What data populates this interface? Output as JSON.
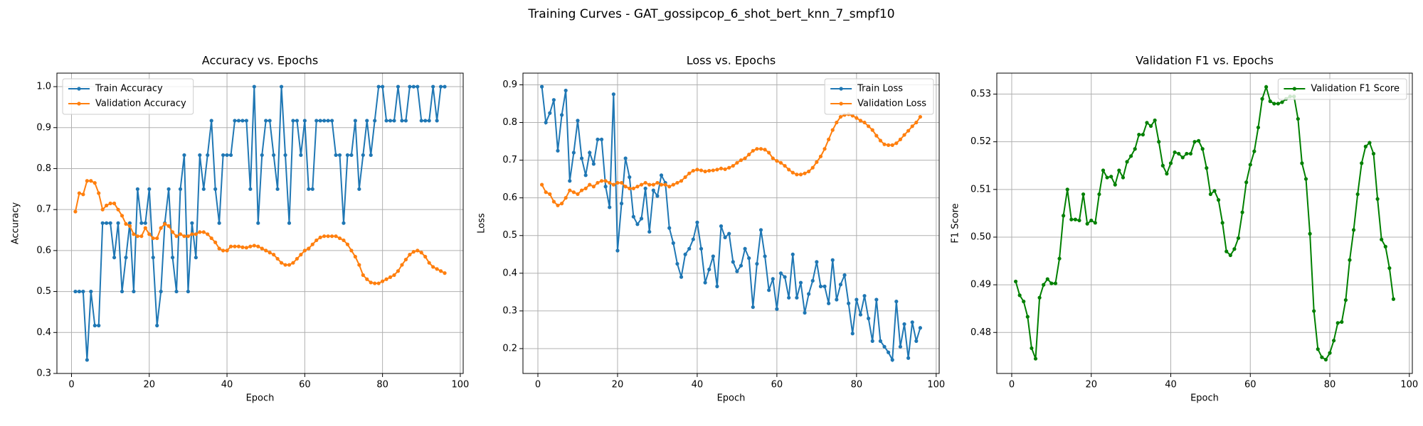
{
  "title": "Training Curves - GAT_gossipcop_6_shot_bert_knn_7_smpf10",
  "chart_data": [
    {
      "type": "line",
      "title": "Accuracy vs. Epochs",
      "x_label": "Epoch",
      "y_label": "Accuracy",
      "x": [
        1,
        2,
        3,
        4,
        5,
        6,
        7,
        8,
        9,
        10,
        11,
        12,
        13,
        14,
        15,
        16,
        17,
        18,
        19,
        20,
        21,
        22,
        23,
        24,
        25,
        26,
        27,
        28,
        29,
        30,
        31,
        32,
        33,
        34,
        35,
        36,
        37,
        38,
        39,
        40,
        41,
        42,
        43,
        44,
        45,
        46,
        47,
        48,
        49,
        50,
        51,
        52,
        53,
        54,
        55,
        56,
        57,
        58,
        59,
        60,
        61,
        62,
        63,
        64,
        65,
        66,
        67,
        68,
        69,
        70,
        71,
        72,
        73,
        74,
        75,
        76,
        77,
        78,
        79,
        80,
        81,
        82,
        83,
        84,
        85,
        86,
        87,
        88,
        89,
        90,
        91,
        92,
        93,
        94,
        95,
        96
      ],
      "series": [
        {
          "name": "Train Accuracy",
          "color": "#1f77b4",
          "values": [
            0.5,
            0.5,
            0.5,
            0.333,
            0.5,
            0.417,
            0.417,
            0.667,
            0.667,
            0.667,
            0.583,
            0.667,
            0.5,
            0.583,
            0.667,
            0.5,
            0.75,
            0.667,
            0.667,
            0.75,
            0.583,
            0.417,
            0.5,
            0.667,
            0.75,
            0.583,
            0.5,
            0.75,
            0.833,
            0.5,
            0.667,
            0.583,
            0.833,
            0.75,
            0.833,
            0.917,
            0.75,
            0.667,
            0.833,
            0.833,
            0.833,
            0.917,
            0.917,
            0.917,
            0.917,
            0.75,
            1.0,
            0.667,
            0.833,
            0.917,
            0.917,
            0.833,
            0.75,
            1.0,
            0.833,
            0.667,
            0.917,
            0.917,
            0.833,
            0.917,
            0.75,
            0.75,
            0.917,
            0.917,
            0.917,
            0.917,
            0.917,
            0.833,
            0.833,
            0.667,
            0.833,
            0.833,
            0.917,
            0.75,
            0.833,
            0.917,
            0.833,
            0.917,
            1.0,
            1.0,
            0.917,
            0.917,
            0.917,
            1.0,
            0.917,
            0.917,
            1.0,
            1.0,
            1.0,
            0.917,
            0.917,
            0.917,
            1.0,
            0.917,
            1.0,
            1.0
          ]
        },
        {
          "name": "Validation Accuracy",
          "color": "#ff7f0e",
          "values": [
            0.695,
            0.74,
            0.737,
            0.77,
            0.77,
            0.765,
            0.74,
            0.7,
            0.71,
            0.715,
            0.715,
            0.7,
            0.685,
            0.665,
            0.66,
            0.64,
            0.635,
            0.635,
            0.655,
            0.64,
            0.63,
            0.63,
            0.655,
            0.665,
            0.66,
            0.645,
            0.635,
            0.64,
            0.635,
            0.635,
            0.64,
            0.64,
            0.645,
            0.645,
            0.64,
            0.63,
            0.62,
            0.605,
            0.6,
            0.6,
            0.61,
            0.61,
            0.61,
            0.608,
            0.607,
            0.61,
            0.612,
            0.61,
            0.605,
            0.6,
            0.595,
            0.59,
            0.58,
            0.57,
            0.565,
            0.565,
            0.57,
            0.58,
            0.59,
            0.6,
            0.605,
            0.615,
            0.625,
            0.632,
            0.635,
            0.635,
            0.635,
            0.635,
            0.63,
            0.625,
            0.615,
            0.6,
            0.585,
            0.565,
            0.54,
            0.53,
            0.522,
            0.52,
            0.52,
            0.525,
            0.53,
            0.535,
            0.54,
            0.55,
            0.565,
            0.578,
            0.59,
            0.597,
            0.6,
            0.595,
            0.585,
            0.57,
            0.56,
            0.555,
            0.55,
            0.545
          ]
        }
      ],
      "xlim": [
        -3.75,
        100.75
      ],
      "xticks": [
        0,
        20,
        40,
        60,
        80,
        100
      ],
      "ylim": [
        0.3,
        1.033
      ],
      "yticks": [
        0.3,
        0.4,
        0.5,
        0.6,
        0.7,
        0.8,
        0.9,
        {
          "value": 1,
          "label": "1.0"
        }
      ],
      "grid": true,
      "legend": "upper left"
    },
    {
      "type": "line",
      "title": "Loss vs. Epochs",
      "x_label": "Epoch",
      "y_label": "Loss",
      "x": [
        1,
        2,
        3,
        4,
        5,
        6,
        7,
        8,
        9,
        10,
        11,
        12,
        13,
        14,
        15,
        16,
        17,
        18,
        19,
        20,
        21,
        22,
        23,
        24,
        25,
        26,
        27,
        28,
        29,
        30,
        31,
        32,
        33,
        34,
        35,
        36,
        37,
        38,
        39,
        40,
        41,
        42,
        43,
        44,
        45,
        46,
        47,
        48,
        49,
        50,
        51,
        52,
        53,
        54,
        55,
        56,
        57,
        58,
        59,
        60,
        61,
        62,
        63,
        64,
        65,
        66,
        67,
        68,
        69,
        70,
        71,
        72,
        73,
        74,
        75,
        76,
        77,
        78,
        79,
        80,
        81,
        82,
        83,
        84,
        85,
        86,
        87,
        88,
        89,
        90,
        91,
        92,
        93,
        94,
        95,
        96
      ],
      "series": [
        {
          "name": "Train Loss",
          "color": "#1f77b4",
          "values": [
            0.895,
            0.8,
            0.825,
            0.86,
            0.725,
            0.82,
            0.885,
            0.645,
            0.72,
            0.805,
            0.705,
            0.66,
            0.72,
            0.69,
            0.755,
            0.755,
            0.63,
            0.575,
            0.875,
            0.46,
            0.585,
            0.705,
            0.655,
            0.55,
            0.53,
            0.545,
            0.625,
            0.51,
            0.62,
            0.605,
            0.66,
            0.64,
            0.52,
            0.48,
            0.425,
            0.39,
            0.45,
            0.465,
            0.49,
            0.535,
            0.465,
            0.375,
            0.41,
            0.445,
            0.365,
            0.525,
            0.495,
            0.505,
            0.43,
            0.405,
            0.42,
            0.465,
            0.44,
            0.31,
            0.425,
            0.515,
            0.445,
            0.355,
            0.385,
            0.305,
            0.4,
            0.39,
            0.335,
            0.45,
            0.335,
            0.375,
            0.295,
            0.345,
            0.38,
            0.43,
            0.365,
            0.365,
            0.32,
            0.435,
            0.33,
            0.37,
            0.395,
            0.32,
            0.24,
            0.33,
            0.29,
            0.34,
            0.28,
            0.22,
            0.33,
            0.22,
            0.205,
            0.19,
            0.17,
            0.325,
            0.205,
            0.265,
            0.175,
            0.27,
            0.22,
            0.255
          ]
        },
        {
          "name": "Validation Loss",
          "color": "#ff7f0e",
          "values": [
            0.635,
            0.615,
            0.61,
            0.59,
            0.58,
            0.585,
            0.6,
            0.62,
            0.615,
            0.61,
            0.62,
            0.625,
            0.635,
            0.63,
            0.64,
            0.645,
            0.645,
            0.64,
            0.635,
            0.64,
            0.64,
            0.63,
            0.625,
            0.625,
            0.63,
            0.635,
            0.64,
            0.635,
            0.635,
            0.64,
            0.635,
            0.635,
            0.63,
            0.635,
            0.64,
            0.645,
            0.655,
            0.665,
            0.672,
            0.675,
            0.673,
            0.67,
            0.672,
            0.673,
            0.675,
            0.678,
            0.676,
            0.68,
            0.685,
            0.693,
            0.7,
            0.705,
            0.715,
            0.725,
            0.73,
            0.73,
            0.728,
            0.72,
            0.705,
            0.698,
            0.693,
            0.685,
            0.675,
            0.667,
            0.662,
            0.662,
            0.665,
            0.67,
            0.68,
            0.695,
            0.71,
            0.73,
            0.755,
            0.78,
            0.8,
            0.815,
            0.82,
            0.822,
            0.818,
            0.812,
            0.805,
            0.8,
            0.79,
            0.78,
            0.765,
            0.752,
            0.742,
            0.74,
            0.74,
            0.745,
            0.755,
            0.767,
            0.778,
            0.79,
            0.8,
            0.815
          ]
        }
      ],
      "xlim": [
        -3.75,
        100.75
      ],
      "xticks": [
        0,
        20,
        40,
        60,
        80,
        100
      ],
      "ylim": [
        0.134,
        0.931
      ],
      "yticks": [
        0.2,
        0.3,
        0.4,
        0.5,
        0.6,
        0.7,
        0.8,
        0.9
      ],
      "grid": true,
      "legend": "upper right"
    },
    {
      "type": "line",
      "title": "Validation F1 vs. Epochs",
      "x_label": "Epoch",
      "y_label": "F1 Score",
      "x": [
        1,
        2,
        3,
        4,
        5,
        6,
        7,
        8,
        9,
        10,
        11,
        12,
        13,
        14,
        15,
        16,
        17,
        18,
        19,
        20,
        21,
        22,
        23,
        24,
        25,
        26,
        27,
        28,
        29,
        30,
        31,
        32,
        33,
        34,
        35,
        36,
        37,
        38,
        39,
        40,
        41,
        42,
        43,
        44,
        45,
        46,
        47,
        48,
        49,
        50,
        51,
        52,
        53,
        54,
        55,
        56,
        57,
        58,
        59,
        60,
        61,
        62,
        63,
        64,
        65,
        66,
        67,
        68,
        69,
        70,
        71,
        72,
        73,
        74,
        75,
        76,
        77,
        78,
        79,
        80,
        81,
        82,
        83,
        84,
        85,
        86,
        87,
        88,
        89,
        90,
        91,
        92,
        93,
        94,
        95,
        96
      ],
      "series": [
        {
          "name": "Validation F1 Score",
          "color": "#008000",
          "values": [
            0.4907,
            0.4878,
            0.4865,
            0.4833,
            0.4767,
            0.4745,
            0.4873,
            0.49,
            0.4912,
            0.4903,
            0.4903,
            0.4955,
            0.5045,
            0.51,
            0.5037,
            0.5037,
            0.5035,
            0.509,
            0.5028,
            0.5035,
            0.503,
            0.509,
            0.514,
            0.5125,
            0.5127,
            0.511,
            0.514,
            0.5125,
            0.5158,
            0.517,
            0.5185,
            0.5215,
            0.5215,
            0.524,
            0.5233,
            0.5245,
            0.52,
            0.515,
            0.5133,
            0.5155,
            0.5178,
            0.5175,
            0.5167,
            0.5175,
            0.5175,
            0.52,
            0.5202,
            0.5185,
            0.5145,
            0.509,
            0.5097,
            0.5078,
            0.503,
            0.497,
            0.4962,
            0.4975,
            0.4998,
            0.5052,
            0.5115,
            0.5152,
            0.518,
            0.523,
            0.529,
            0.5315,
            0.5285,
            0.528,
            0.528,
            0.5283,
            0.529,
            0.5295,
            0.5295,
            0.5248,
            0.5155,
            0.5122,
            0.5007,
            0.4845,
            0.4765,
            0.4748,
            0.4743,
            0.4757,
            0.4783,
            0.482,
            0.4822,
            0.4868,
            0.4952,
            0.5015,
            0.509,
            0.5155,
            0.519,
            0.5198,
            0.5175,
            0.508,
            0.4995,
            0.498,
            0.4935,
            0.487
          ]
        }
      ],
      "xlim": [
        -3.75,
        100.75
      ],
      "xticks": [
        0,
        20,
        40,
        60,
        80,
        100
      ],
      "ylim": [
        0.4714,
        0.5344
      ],
      "yticks": [
        0.48,
        0.49,
        {
          "value": 0.5,
          "label": "0.50"
        },
        0.51,
        0.52,
        0.53
      ],
      "grid": true,
      "legend": "upper right"
    }
  ]
}
